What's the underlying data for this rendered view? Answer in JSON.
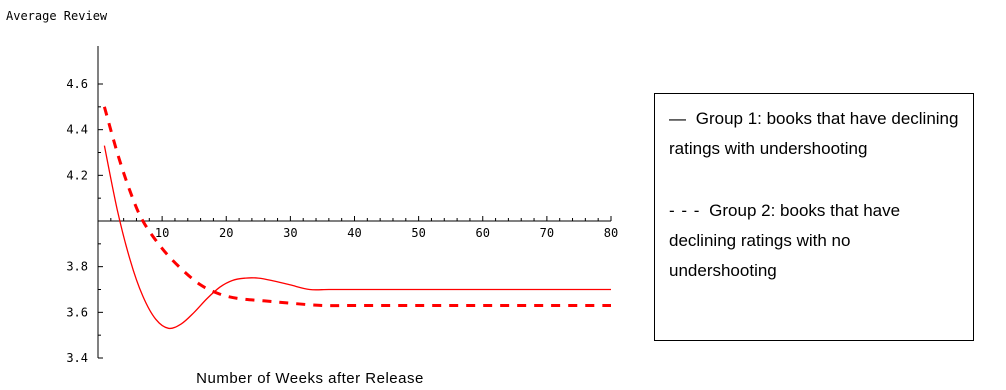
{
  "chart_data": {
    "type": "line",
    "ylabel": "Average Review",
    "xlabel": "Number of Weeks after Release",
    "xlim": [
      0,
      80
    ],
    "ylim": [
      3.4,
      4.6
    ],
    "x_axis_crosses_at": 4.0,
    "xticks": [
      10,
      20,
      30,
      40,
      50,
      60,
      70,
      80
    ],
    "xtick_labels": [
      "10",
      "20",
      "30",
      "40",
      "50",
      "60",
      "70",
      "80"
    ],
    "yticks": [
      4.6,
      4.4,
      4.2,
      3.8,
      3.6,
      3.4
    ],
    "ytick_labels": [
      "4.6",
      "4.4",
      "4.2",
      "3.8",
      "3.6",
      "3.4"
    ],
    "series": [
      {
        "name": "Group 1: books that have declining ratings with undershooting",
        "style": "solid",
        "color": "#ff0000",
        "x": [
          1,
          3,
          5,
          7,
          9,
          11,
          13,
          15,
          17,
          19,
          21,
          23,
          25,
          27,
          30,
          33,
          36,
          40,
          50,
          60,
          70,
          80
        ],
        "y": [
          4.33,
          4.05,
          3.83,
          3.67,
          3.57,
          3.53,
          3.55,
          3.6,
          3.66,
          3.71,
          3.74,
          3.75,
          3.75,
          3.74,
          3.72,
          3.7,
          3.7,
          3.7,
          3.7,
          3.7,
          3.7,
          3.7
        ]
      },
      {
        "name": "Group 2: books that have declining ratings with no undershooting",
        "style": "dashed",
        "color": "#ff0000",
        "x": [
          1,
          3,
          5,
          7,
          10,
          13,
          16,
          19,
          22,
          26,
          30,
          35,
          40,
          50,
          60,
          70,
          80
        ],
        "y": [
          4.5,
          4.3,
          4.13,
          4.0,
          3.88,
          3.79,
          3.72,
          3.68,
          3.66,
          3.65,
          3.64,
          3.63,
          3.63,
          3.63,
          3.63,
          3.63,
          3.63
        ]
      }
    ]
  },
  "legend": {
    "group1_symbol": "—",
    "group1_text": "Group 1: books that have declining ratings with undershooting",
    "group2_symbol": "- - -",
    "group2_text": "Group 2: books that have declining ratings with no undershooting"
  }
}
